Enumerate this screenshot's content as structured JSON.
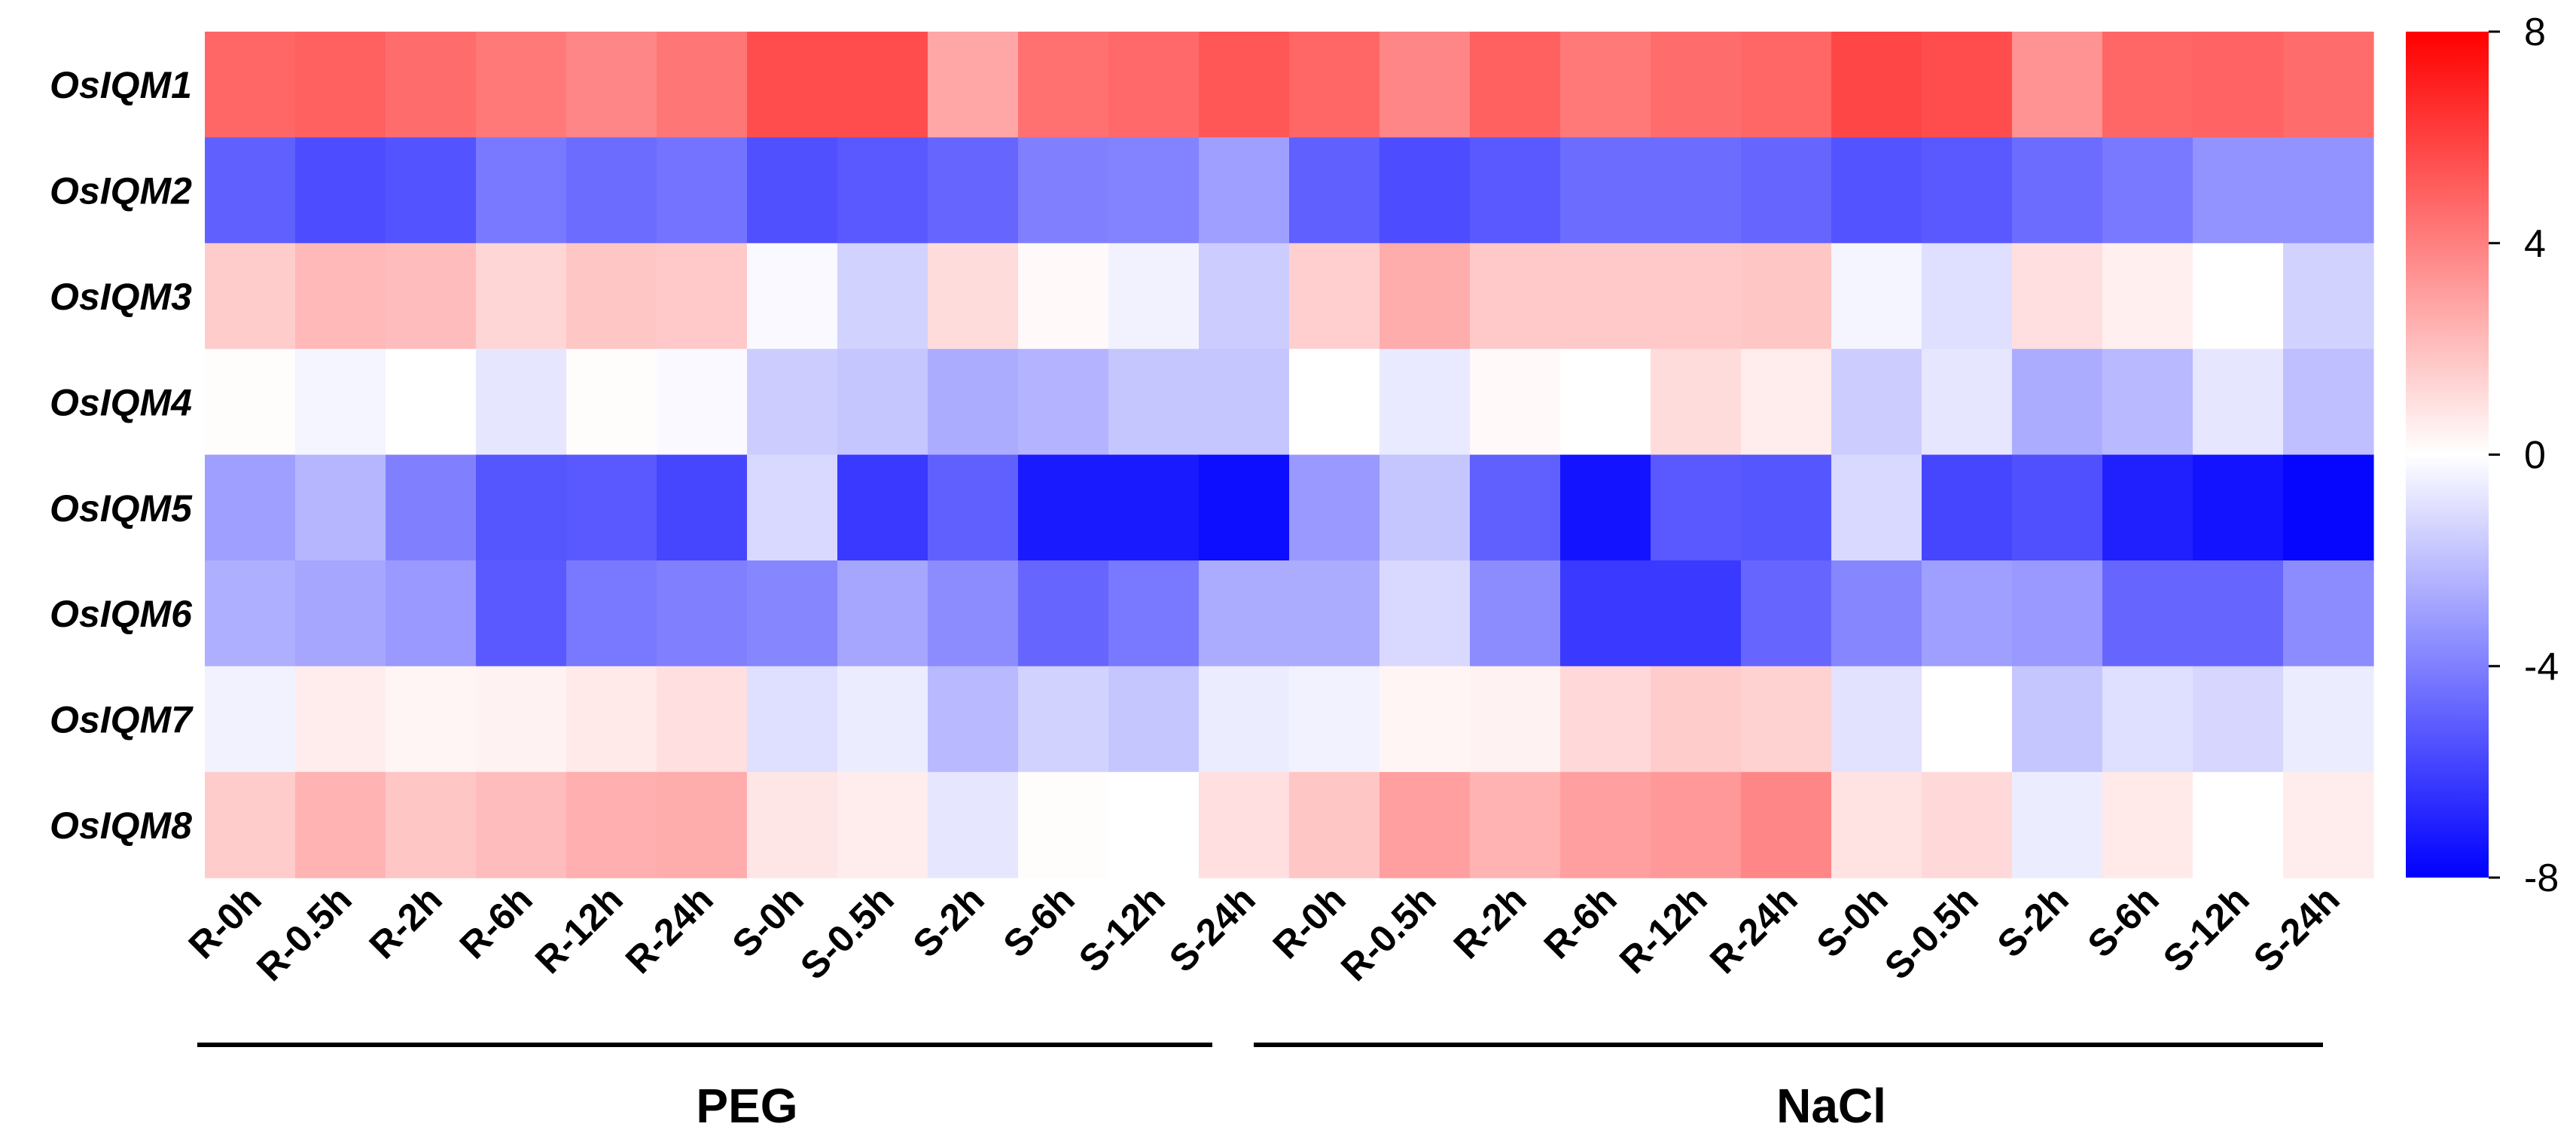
{
  "chart_data": {
    "type": "heatmap",
    "rows": [
      "OsIQM1",
      "OsIQM2",
      "OsIQM3",
      "OsIQM4",
      "OsIQM5",
      "OsIQM6",
      "OsIQM7",
      "OsIQM8"
    ],
    "columns": [
      "R-0h",
      "R-0.5h",
      "R-2h",
      "R-6h",
      "R-12h",
      "R-24h",
      "S-0h",
      "S-0.5h",
      "S-2h",
      "S-6h",
      "S-12h",
      "S-24h",
      "R-0h",
      "R-0.5h",
      "R-2h",
      "R-6h",
      "R-12h",
      "R-24h",
      "S-0h",
      "S-0.5h",
      "S-2h",
      "S-6h",
      "S-12h",
      "S-24h"
    ],
    "values": [
      [
        4.8,
        5.0,
        4.6,
        4.2,
        3.8,
        4.3,
        5.6,
        5.6,
        2.8,
        4.5,
        4.7,
        5.3,
        4.8,
        3.8,
        5.0,
        4.2,
        4.6,
        4.8,
        5.8,
        5.6,
        3.4,
        4.8,
        4.9,
        4.6
      ],
      [
        -5.0,
        -5.6,
        -5.4,
        -4.2,
        -4.6,
        -4.4,
        -5.5,
        -5.2,
        -4.8,
        -4.0,
        -3.9,
        -3.0,
        -5.0,
        -5.6,
        -5.2,
        -4.6,
        -4.6,
        -4.8,
        -5.4,
        -5.2,
        -4.6,
        -4.2,
        -3.4,
        -3.4
      ],
      [
        1.6,
        2.2,
        2.1,
        1.3,
        1.8,
        1.7,
        -0.2,
        -1.4,
        1.1,
        0.2,
        -0.4,
        -1.6,
        1.5,
        2.6,
        1.7,
        1.7,
        1.7,
        1.8,
        -0.3,
        -1.0,
        1.0,
        0.5,
        0.0,
        -1.4
      ],
      [
        0.1,
        -0.3,
        0.0,
        -0.8,
        0.1,
        -0.2,
        -1.6,
        -1.8,
        -2.6,
        -2.4,
        -1.8,
        -1.8,
        0.0,
        -0.7,
        0.2,
        0.0,
        1.1,
        0.6,
        -1.6,
        -0.8,
        -2.6,
        -2.2,
        -0.8,
        -2.0
      ],
      [
        -3.0,
        -2.3,
        -4.0,
        -5.3,
        -5.2,
        -5.8,
        -1.2,
        -6.2,
        -5.0,
        -7.2,
        -7.2,
        -7.6,
        -3.2,
        -1.8,
        -5.0,
        -7.4,
        -5.2,
        -5.3,
        -1.2,
        -5.8,
        -5.5,
        -7.0,
        -7.4,
        -7.8
      ],
      [
        -2.5,
        -2.8,
        -3.2,
        -5.2,
        -4.2,
        -4.0,
        -3.8,
        -2.8,
        -3.6,
        -4.8,
        -4.2,
        -2.6,
        -2.6,
        -1.2,
        -3.6,
        -6.2,
        -6.2,
        -4.8,
        -3.8,
        -3.0,
        -3.2,
        -4.8,
        -4.8,
        -3.6
      ],
      [
        -0.4,
        0.6,
        0.3,
        0.4,
        0.7,
        1.0,
        -1.0,
        -0.6,
        -2.2,
        -1.4,
        -1.8,
        -0.6,
        -0.4,
        0.3,
        0.4,
        1.2,
        1.6,
        1.4,
        -0.9,
        0.0,
        -1.8,
        -1.0,
        -1.3,
        -0.6
      ],
      [
        1.6,
        2.4,
        1.8,
        2.1,
        2.5,
        2.6,
        0.8,
        0.6,
        -0.8,
        0.1,
        0.0,
        1.0,
        1.8,
        3.0,
        2.4,
        3.0,
        3.2,
        3.8,
        0.9,
        1.2,
        -0.6,
        0.7,
        0.0,
        0.6
      ]
    ],
    "colorbar": {
      "min": -8,
      "max": 8,
      "ticks": [
        "8",
        "4",
        "0",
        "-4",
        "-8"
      ],
      "colors": {
        "low": "#0000FF",
        "mid": "#FFFFFF",
        "high": "#FF0000"
      }
    },
    "groups": [
      "PEG",
      "NaCl"
    ],
    "title": "",
    "xlabel": "",
    "ylabel": ""
  }
}
